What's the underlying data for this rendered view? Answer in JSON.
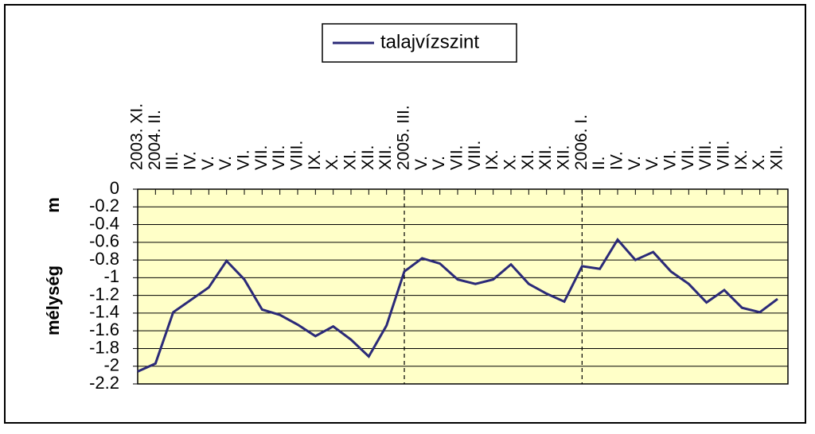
{
  "chart_data": {
    "type": "line",
    "legend_label": "talajvízszint",
    "y_label": "mélység",
    "y_unit": "m",
    "categories": [
      "2003. XI.",
      "2004. II.",
      "III.",
      "IV.",
      "V.",
      "V.",
      "VI.",
      "VII.",
      "VII.",
      "VIII.",
      "IX.",
      "X.",
      "XI.",
      "XII.",
      "XII.",
      "2005. III.",
      "V.",
      "V.",
      "VII.",
      "VIII.",
      "IX.",
      "X.",
      "XI.",
      "XII.",
      "XII.",
      "2006. I.",
      "II.",
      "IV.",
      "V.",
      "V.",
      "VI.",
      "VII.",
      "VIII.",
      "VIII.",
      "IX.",
      "X.",
      "XII."
    ],
    "series": [
      {
        "name": "talajvízszint",
        "color": "#2b2a78",
        "values": [
          -2.06,
          -1.97,
          -1.39,
          -1.25,
          -1.11,
          -0.81,
          -1.02,
          -1.36,
          -1.42,
          -1.53,
          -1.66,
          -1.55,
          -1.7,
          -1.89,
          -1.54,
          -0.93,
          -0.78,
          -0.84,
          -1.02,
          -1.07,
          -1.02,
          -0.85,
          -1.07,
          -1.18,
          -1.27,
          -0.87,
          -0.9,
          -0.57,
          -0.8,
          -0.71,
          -0.93,
          -1.07,
          -1.28,
          -1.14,
          -1.34,
          -1.39,
          -1.24
        ]
      }
    ],
    "separators": [
      15,
      25
    ],
    "ylim": [
      -2.2,
      0
    ],
    "yticks": [
      0,
      -0.2,
      -0.4,
      -0.6,
      -0.8,
      -1,
      -1.2,
      -1.4,
      -1.6,
      -1.8,
      -2,
      -2.2
    ],
    "grid": true,
    "plot_color": "#ffffc8"
  }
}
